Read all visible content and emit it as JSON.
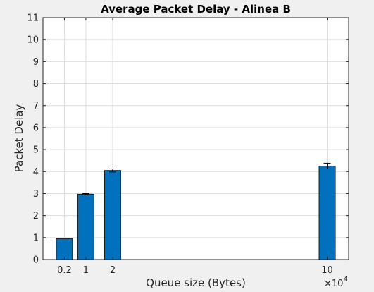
{
  "chart_data": {
    "type": "bar",
    "title": "Average Packet Delay - Alinea B",
    "xlabel": "Queue size (Bytes)",
    "ylabel": "Packet Delay",
    "x_exponent_base": "×10",
    "x_exponent_power": "4",
    "x_tick_labels": [
      "0.2",
      "1",
      "2",
      "10"
    ],
    "x": [
      2000,
      10000,
      20000,
      100000
    ],
    "y": [
      0.95,
      2.97,
      4.05,
      4.25
    ],
    "error": [
      0.0,
      0.03,
      0.07,
      0.13
    ],
    "xlim": [
      -6000,
      108000
    ],
    "ylim": [
      0,
      11
    ],
    "yticks": [
      0,
      1,
      2,
      3,
      4,
      5,
      6,
      7,
      8,
      9,
      10,
      11
    ],
    "grid": true,
    "bar_color": "#0072bd",
    "errorbar_color": "#000000"
  }
}
